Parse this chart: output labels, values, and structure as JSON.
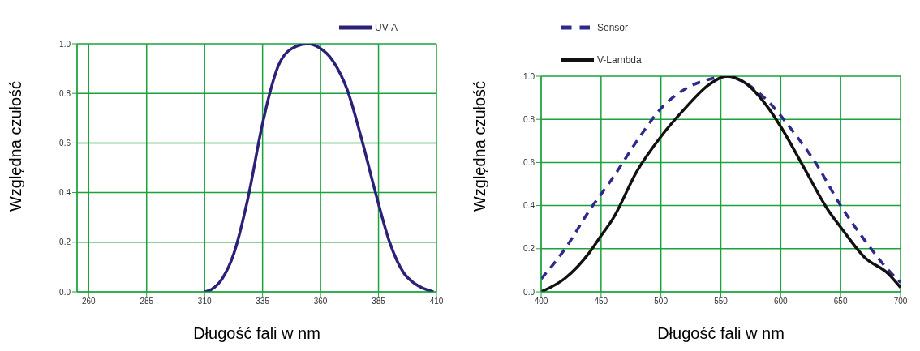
{
  "chart_data": [
    {
      "type": "line",
      "xlabel": "Długość fali w nm",
      "ylabel": "Względna czułość",
      "xlim": [
        255,
        410
      ],
      "xticks": [
        260,
        285,
        310,
        335,
        360,
        385,
        410
      ],
      "ylim": [
        0,
        1
      ],
      "yticks": [
        {
          "value": 0,
          "label": "0.0"
        },
        {
          "value": 0.2,
          "label": "0.2"
        },
        {
          "value": 0.4,
          "label": "0.4"
        },
        {
          "value": 0.6,
          "label": "0.6"
        },
        {
          "value": 0.8,
          "label": "0.8"
        },
        {
          "value": 1,
          "label": "1.0"
        }
      ],
      "grid": true,
      "legend": "top right",
      "line_style": "solid",
      "series": [
        {
          "name": "UV-A",
          "color": "#2b2178",
          "x": [
            310,
            313,
            317.8,
            322.6,
            328.7,
            334.8,
            338.5,
            342.2,
            349.5,
            354.4,
            359.3,
            365.4,
            371.5,
            377.6,
            383.7,
            389.8,
            395.9,
            400.8,
            408.7
          ],
          "values": [
            0,
            0.01,
            0.056,
            0.154,
            0.378,
            0.67,
            0.815,
            0.92,
            0.99,
            1,
            0.985,
            0.93,
            0.815,
            0.62,
            0.4,
            0.2,
            0.076,
            0.032,
            0
          ]
        }
      ]
    },
    {
      "type": "line",
      "xlabel": "Długość fali w nm",
      "ylabel": "Względna czułość",
      "xlim": [
        400,
        700
      ],
      "xticks": [
        400,
        450,
        500,
        550,
        600,
        650,
        700
      ],
      "ylim": [
        0,
        1
      ],
      "yticks": [
        {
          "value": 0,
          "label": "0.0"
        },
        {
          "value": 0.2,
          "label": "0.2"
        },
        {
          "value": 0.4,
          "label": "0.4"
        },
        {
          "value": 0.6,
          "label": "0.6"
        },
        {
          "value": 0.8,
          "label": "0.8"
        },
        {
          "value": 1,
          "label": "1.0"
        }
      ],
      "grid": true,
      "legend": "top left",
      "series": [
        {
          "name": "Sensor",
          "color": "#2e2a8a",
          "line_style": "dashed",
          "x": [
            400,
            420,
            440,
            460,
            480,
            500,
            520,
            540,
            555,
            570,
            590,
            610,
            630,
            650,
            670,
            690,
            700
          ],
          "values": [
            0.06,
            0.2,
            0.375,
            0.53,
            0.7,
            0.85,
            0.94,
            0.985,
            1,
            0.97,
            0.88,
            0.746,
            0.59,
            0.4,
            0.24,
            0.1,
            0.044
          ]
        },
        {
          "name": "V-Lambda",
          "color": "#111111",
          "line_style": "solid",
          "x": [
            400,
            420,
            440,
            450,
            460,
            480,
            500,
            520,
            540,
            555,
            570,
            590,
            600,
            620,
            640,
            650,
            670,
            690,
            700
          ],
          "values": [
            0,
            0.063,
            0.18,
            0.26,
            0.34,
            0.56,
            0.72,
            0.85,
            0.96,
            1,
            0.97,
            0.85,
            0.766,
            0.57,
            0.375,
            0.3,
            0.16,
            0.083,
            0.02
          ]
        }
      ]
    }
  ]
}
